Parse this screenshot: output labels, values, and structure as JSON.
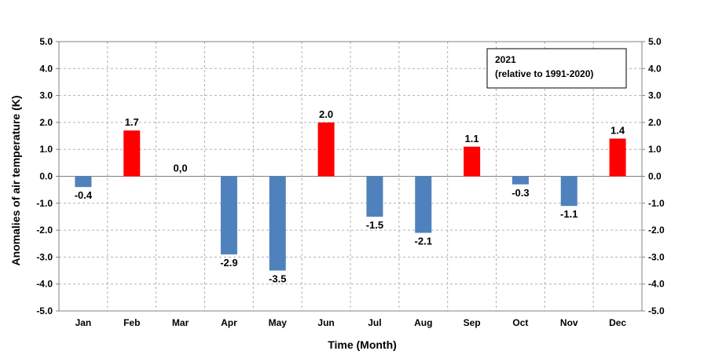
{
  "chart_data": {
    "type": "bar",
    "categories": [
      "Jan",
      "Feb",
      "Mar",
      "Apr",
      "May",
      "Jun",
      "Jul",
      "Aug",
      "Sep",
      "Oct",
      "Nov",
      "Dec"
    ],
    "values": [
      -0.4,
      1.7,
      0.0,
      -2.9,
      -3.5,
      2.0,
      -1.5,
      -2.1,
      1.1,
      -0.3,
      -1.1,
      1.4
    ],
    "data_labels": [
      "-0.4",
      "1.7",
      "0,0",
      "-2.9",
      "-3.5",
      "2.0",
      "-1.5",
      "-2.1",
      "1.1",
      "-0.3",
      "-1.1",
      "1.4"
    ],
    "ylim": [
      -5.0,
      5.0
    ],
    "y_ticks": [
      "5.0",
      "4.0",
      "3.0",
      "2.0",
      "1.0",
      "0.0",
      "-1.0",
      "-2.0",
      "-3.0",
      "-4.0",
      "-5.0"
    ],
    "xlabel": "Time (Month)",
    "ylabel": "Anomalies of air temperature (K)",
    "annotation": {
      "line1": "2021",
      "line2": "(relative to 1991-2020)",
      "placement": "top-right"
    },
    "grid": true,
    "colors": {
      "positive": "#ff0000",
      "negative": "#4f81bd",
      "grid": "#b0b0b0"
    }
  }
}
